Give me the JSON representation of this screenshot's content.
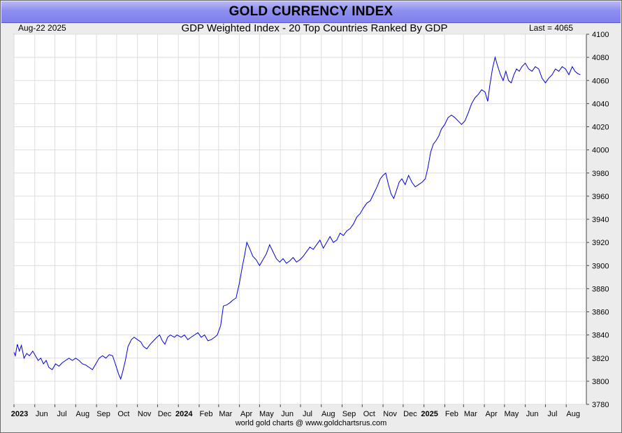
{
  "header": {
    "title": "GOLD CURRENCY INDEX",
    "date_label": "Aug-22  2025",
    "subtitle": "GDP Weighted Index - 20 Top Countries Ranked By GDP",
    "last_label": "Last = 4065"
  },
  "footer": {
    "text": "world gold charts @ www.goldchartsrus.com"
  },
  "colors": {
    "line": "#0000dd",
    "grid": "#dddddd",
    "title_bg": "#8a8af0"
  },
  "chart_data": {
    "type": "line",
    "title": "GOLD CURRENCY INDEX",
    "subtitle": "GDP Weighted Index - 20 Top Countries Ranked By GDP",
    "ylim": [
      3780,
      4100
    ],
    "yticks": [
      3780,
      3800,
      3820,
      3840,
      3860,
      3880,
      3900,
      3920,
      3940,
      3960,
      3980,
      4000,
      4020,
      4040,
      4060,
      4080,
      4100
    ],
    "xlim": [
      "2023-05-01",
      "2025-08-31"
    ],
    "xticks": [
      {
        "label": "2023",
        "date": "2023-05-01",
        "bold": true
      },
      {
        "label": "Jun",
        "date": "2023-06-01"
      },
      {
        "label": "Jul",
        "date": "2023-07-01"
      },
      {
        "label": "Aug",
        "date": "2023-08-01"
      },
      {
        "label": "Sep",
        "date": "2023-09-01"
      },
      {
        "label": "Oct",
        "date": "2023-10-01"
      },
      {
        "label": "Nov",
        "date": "2023-11-01"
      },
      {
        "label": "Dec",
        "date": "2023-12-01"
      },
      {
        "label": "2024",
        "date": "2024-01-01",
        "bold": true
      },
      {
        "label": "Feb",
        "date": "2024-02-01"
      },
      {
        "label": "Mar",
        "date": "2024-03-01"
      },
      {
        "label": "Apr",
        "date": "2024-04-01"
      },
      {
        "label": "May",
        "date": "2024-05-01"
      },
      {
        "label": "Jun",
        "date": "2024-06-01"
      },
      {
        "label": "Jul",
        "date": "2024-07-01"
      },
      {
        "label": "Aug",
        "date": "2024-08-01"
      },
      {
        "label": "Sep",
        "date": "2024-09-01"
      },
      {
        "label": "Oct",
        "date": "2024-10-01"
      },
      {
        "label": "Nov",
        "date": "2024-11-01"
      },
      {
        "label": "Dec",
        "date": "2024-12-01"
      },
      {
        "label": "2025",
        "date": "2025-01-01",
        "bold": true
      },
      {
        "label": "Feb",
        "date": "2025-02-01"
      },
      {
        "label": "Mar",
        "date": "2025-03-01"
      },
      {
        "label": "Apr",
        "date": "2025-04-01"
      },
      {
        "label": "May",
        "date": "2025-05-01"
      },
      {
        "label": "Jun",
        "date": "2025-06-01"
      },
      {
        "label": "Jul",
        "date": "2025-07-01"
      },
      {
        "label": "Aug",
        "date": "2025-08-01"
      }
    ],
    "grid": true,
    "last_value": 4065,
    "series": [
      {
        "points": [
          [
            "2023-05-01",
            3825
          ],
          [
            "2023-05-03",
            3822
          ],
          [
            "2023-05-06",
            3832
          ],
          [
            "2023-05-09",
            3826
          ],
          [
            "2023-05-12",
            3831
          ],
          [
            "2023-05-16",
            3820
          ],
          [
            "2023-05-20",
            3824
          ],
          [
            "2023-05-24",
            3822
          ],
          [
            "2023-05-29",
            3826
          ],
          [
            "2023-06-02",
            3822
          ],
          [
            "2023-06-06",
            3818
          ],
          [
            "2023-06-10",
            3820
          ],
          [
            "2023-06-14",
            3815
          ],
          [
            "2023-06-18",
            3818
          ],
          [
            "2023-06-22",
            3812
          ],
          [
            "2023-06-27",
            3810
          ],
          [
            "2023-07-02",
            3815
          ],
          [
            "2023-07-07",
            3813
          ],
          [
            "2023-07-12",
            3816
          ],
          [
            "2023-07-17",
            3818
          ],
          [
            "2023-07-22",
            3820
          ],
          [
            "2023-07-27",
            3818
          ],
          [
            "2023-08-01",
            3820
          ],
          [
            "2023-08-06",
            3818
          ],
          [
            "2023-08-11",
            3815
          ],
          [
            "2023-08-16",
            3814
          ],
          [
            "2023-08-21",
            3812
          ],
          [
            "2023-08-26",
            3810
          ],
          [
            "2023-08-31",
            3815
          ],
          [
            "2023-09-05",
            3820
          ],
          [
            "2023-09-10",
            3822
          ],
          [
            "2023-09-15",
            3820
          ],
          [
            "2023-09-20",
            3823
          ],
          [
            "2023-09-25",
            3822
          ],
          [
            "2023-09-29",
            3815
          ],
          [
            "2023-10-04",
            3806
          ],
          [
            "2023-10-07",
            3802
          ],
          [
            "2023-10-10",
            3808
          ],
          [
            "2023-10-14",
            3818
          ],
          [
            "2023-10-18",
            3830
          ],
          [
            "2023-10-23",
            3836
          ],
          [
            "2023-10-27",
            3838
          ],
          [
            "2023-11-01",
            3836
          ],
          [
            "2023-11-06",
            3834
          ],
          [
            "2023-11-10",
            3830
          ],
          [
            "2023-11-15",
            3828
          ],
          [
            "2023-11-20",
            3832
          ],
          [
            "2023-11-25",
            3835
          ],
          [
            "2023-11-30",
            3838
          ],
          [
            "2023-12-04",
            3840
          ],
          [
            "2023-12-08",
            3835
          ],
          [
            "2023-12-12",
            3832
          ],
          [
            "2023-12-16",
            3838
          ],
          [
            "2023-12-20",
            3840
          ],
          [
            "2023-12-26",
            3838
          ],
          [
            "2023-12-30",
            3840
          ],
          [
            "2024-01-05",
            3838
          ],
          [
            "2024-01-10",
            3840
          ],
          [
            "2024-01-15",
            3836
          ],
          [
            "2024-01-20",
            3838
          ],
          [
            "2024-01-25",
            3840
          ],
          [
            "2024-01-30",
            3842
          ],
          [
            "2024-02-04",
            3838
          ],
          [
            "2024-02-09",
            3840
          ],
          [
            "2024-02-14",
            3835
          ],
          [
            "2024-02-19",
            3836
          ],
          [
            "2024-02-24",
            3838
          ],
          [
            "2024-02-28",
            3840
          ],
          [
            "2024-03-04",
            3848
          ],
          [
            "2024-03-08",
            3865
          ],
          [
            "2024-03-13",
            3866
          ],
          [
            "2024-03-18",
            3868
          ],
          [
            "2024-03-22",
            3870
          ],
          [
            "2024-03-27",
            3872
          ],
          [
            "2024-04-01",
            3885
          ],
          [
            "2024-04-05",
            3898
          ],
          [
            "2024-04-09",
            3910
          ],
          [
            "2024-04-12",
            3920
          ],
          [
            "2024-04-16",
            3915
          ],
          [
            "2024-04-21",
            3908
          ],
          [
            "2024-04-26",
            3905
          ],
          [
            "2024-05-01",
            3900
          ],
          [
            "2024-05-06",
            3905
          ],
          [
            "2024-05-11",
            3910
          ],
          [
            "2024-05-16",
            3918
          ],
          [
            "2024-05-21",
            3912
          ],
          [
            "2024-05-26",
            3906
          ],
          [
            "2024-05-31",
            3903
          ],
          [
            "2024-06-05",
            3906
          ],
          [
            "2024-06-10",
            3902
          ],
          [
            "2024-06-15",
            3904
          ],
          [
            "2024-06-20",
            3907
          ],
          [
            "2024-06-25",
            3903
          ],
          [
            "2024-06-30",
            3905
          ],
          [
            "2024-07-05",
            3908
          ],
          [
            "2024-07-10",
            3912
          ],
          [
            "2024-07-15",
            3916
          ],
          [
            "2024-07-20",
            3914
          ],
          [
            "2024-07-25",
            3918
          ],
          [
            "2024-07-30",
            3922
          ],
          [
            "2024-08-04",
            3915
          ],
          [
            "2024-08-09",
            3920
          ],
          [
            "2024-08-14",
            3925
          ],
          [
            "2024-08-19",
            3920
          ],
          [
            "2024-08-24",
            3922
          ],
          [
            "2024-08-29",
            3928
          ],
          [
            "2024-09-03",
            3926
          ],
          [
            "2024-09-08",
            3930
          ],
          [
            "2024-09-13",
            3932
          ],
          [
            "2024-09-18",
            3936
          ],
          [
            "2024-09-23",
            3942
          ],
          [
            "2024-09-28",
            3945
          ],
          [
            "2024-10-03",
            3950
          ],
          [
            "2024-10-08",
            3954
          ],
          [
            "2024-10-13",
            3956
          ],
          [
            "2024-10-18",
            3962
          ],
          [
            "2024-10-23",
            3968
          ],
          [
            "2024-10-28",
            3975
          ],
          [
            "2024-11-01",
            3978
          ],
          [
            "2024-11-05",
            3980
          ],
          [
            "2024-11-09",
            3970
          ],
          [
            "2024-11-13",
            3962
          ],
          [
            "2024-11-17",
            3958
          ],
          [
            "2024-11-21",
            3965
          ],
          [
            "2024-11-25",
            3972
          ],
          [
            "2024-11-29",
            3975
          ],
          [
            "2024-12-04",
            3970
          ],
          [
            "2024-12-09",
            3978
          ],
          [
            "2024-12-14",
            3972
          ],
          [
            "2024-12-19",
            3968
          ],
          [
            "2024-12-24",
            3970
          ],
          [
            "2024-12-29",
            3972
          ],
          [
            "2025-01-03",
            3975
          ],
          [
            "2025-01-07",
            3985
          ],
          [
            "2025-01-11",
            3998
          ],
          [
            "2025-01-15",
            4005
          ],
          [
            "2025-01-19",
            4008
          ],
          [
            "2025-01-23",
            4012
          ],
          [
            "2025-01-27",
            4018
          ],
          [
            "2025-02-01",
            4022
          ],
          [
            "2025-02-06",
            4028
          ],
          [
            "2025-02-11",
            4030
          ],
          [
            "2025-02-16",
            4028
          ],
          [
            "2025-02-21",
            4025
          ],
          [
            "2025-02-26",
            4022
          ],
          [
            "2025-03-03",
            4025
          ],
          [
            "2025-03-08",
            4032
          ],
          [
            "2025-03-13",
            4040
          ],
          [
            "2025-03-18",
            4045
          ],
          [
            "2025-03-23",
            4048
          ],
          [
            "2025-03-28",
            4052
          ],
          [
            "2025-04-02",
            4050
          ],
          [
            "2025-04-06",
            4042
          ],
          [
            "2025-04-09",
            4055
          ],
          [
            "2025-04-13",
            4070
          ],
          [
            "2025-04-17",
            4080
          ],
          [
            "2025-04-21",
            4072
          ],
          [
            "2025-04-25",
            4065
          ],
          [
            "2025-04-29",
            4060
          ],
          [
            "2025-05-03",
            4068
          ],
          [
            "2025-05-07",
            4060
          ],
          [
            "2025-05-11",
            4058
          ],
          [
            "2025-05-15",
            4065
          ],
          [
            "2025-05-19",
            4070
          ],
          [
            "2025-05-23",
            4068
          ],
          [
            "2025-05-27",
            4072
          ],
          [
            "2025-06-01",
            4075
          ],
          [
            "2025-06-06",
            4070
          ],
          [
            "2025-06-11",
            4068
          ],
          [
            "2025-06-16",
            4072
          ],
          [
            "2025-06-21",
            4070
          ],
          [
            "2025-06-26",
            4062
          ],
          [
            "2025-07-01",
            4058
          ],
          [
            "2025-07-06",
            4062
          ],
          [
            "2025-07-11",
            4065
          ],
          [
            "2025-07-16",
            4070
          ],
          [
            "2025-07-21",
            4068
          ],
          [
            "2025-07-26",
            4072
          ],
          [
            "2025-07-31",
            4070
          ],
          [
            "2025-08-05",
            4065
          ],
          [
            "2025-08-10",
            4072
          ],
          [
            "2025-08-14",
            4068
          ],
          [
            "2025-08-18",
            4066
          ],
          [
            "2025-08-22",
            4065
          ]
        ]
      }
    ]
  }
}
